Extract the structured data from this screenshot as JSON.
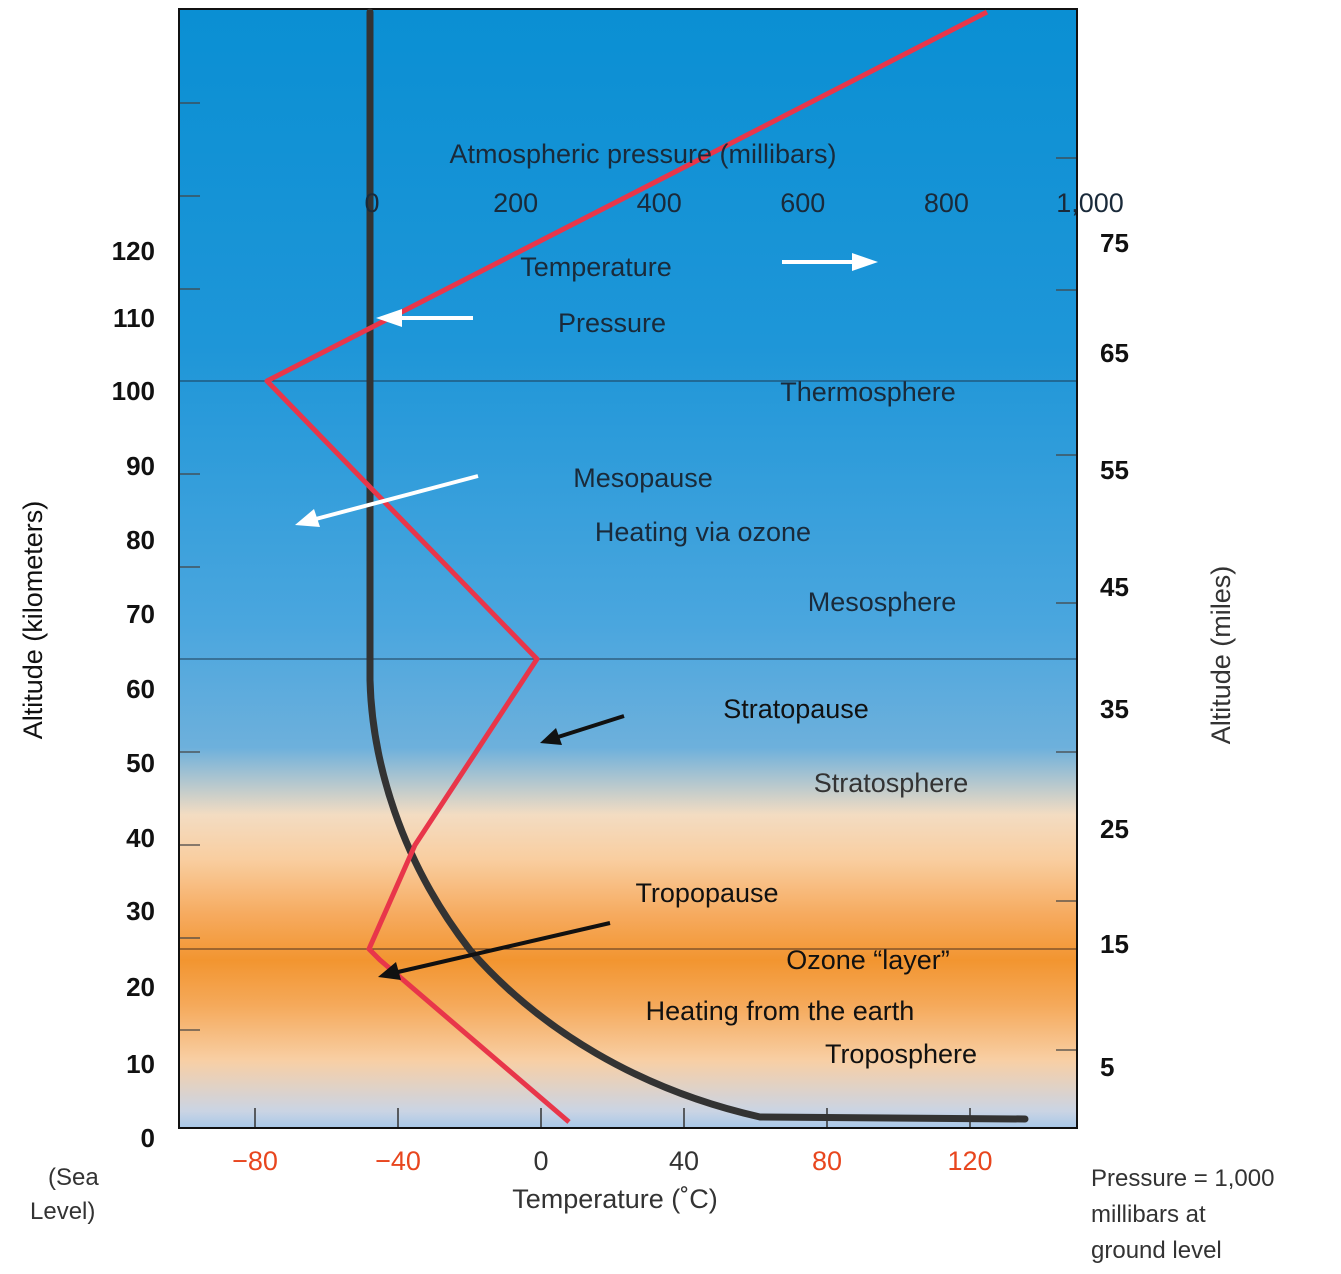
{
  "pressure_axis": {
    "title": "Atmospheric pressure (millibars)",
    "ticks": [
      {
        "value": 0,
        "label": "0"
      },
      {
        "value": 200,
        "label": "200"
      },
      {
        "value": 400,
        "label": "400"
      },
      {
        "value": 600,
        "label": "600"
      },
      {
        "value": 800,
        "label": "800"
      },
      {
        "value": 1000,
        "label": "1,000"
      }
    ]
  },
  "temperature_axis": {
    "title": "Temperature (˚C)",
    "ticks": [
      {
        "value": -80,
        "label": "−80",
        "color": "#e8461e"
      },
      {
        "value": -40,
        "label": "−40",
        "color": "#e8461e"
      },
      {
        "value": 0,
        "label": "0",
        "color": "#333333"
      },
      {
        "value": 40,
        "label": "40",
        "color": "#333333"
      },
      {
        "value": 80,
        "label": "80",
        "color": "#e8461e"
      },
      {
        "value": 120,
        "label": "120",
        "color": "#e8461e"
      }
    ]
  },
  "left_axis": {
    "title": "Altitude (kilometers)",
    "ticks": [
      "0",
      "10",
      "20",
      "30",
      "40",
      "50",
      "60",
      "70",
      "80",
      "90",
      "100",
      "110",
      "120"
    ],
    "sea_level_line1": "(Sea",
    "sea_level_line2": "Level)"
  },
  "right_axis": {
    "title": "Altitude (miles)",
    "ticks": [
      "5",
      "15",
      "25",
      "35",
      "45",
      "55",
      "65",
      "75"
    ]
  },
  "pressure_note": {
    "line1": "Pressure = 1,000",
    "line2": "millibars at",
    "line3": "ground level"
  },
  "labels": {
    "temperature": "Temperature",
    "pressure": "Pressure",
    "thermosphere": "Thermosphere",
    "mesopause": "Mesopause",
    "heating_ozone": "Heating via ozone",
    "mesosphere": "Mesosphere",
    "stratopause": "Stratopause",
    "stratosphere": "Stratosphere",
    "tropopause": "Tropopause",
    "ozone_layer": "Ozone “layer”",
    "heating_earth": "Heating from the earth",
    "troposphere": "Troposphere"
  },
  "colors": {
    "temperature_line": "#e8364a",
    "pressure_line": "#333333",
    "sky_top": "#0b8fd4",
    "orange_band": "#f29530"
  }
}
